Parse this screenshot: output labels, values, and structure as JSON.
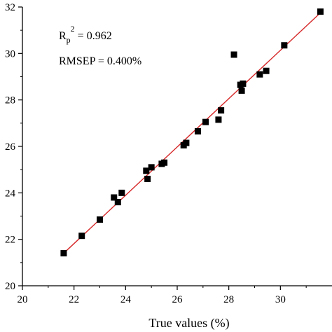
{
  "chart_data": {
    "type": "scatter",
    "xlabel": "True values (%)",
    "ylabel": "",
    "xlim": [
      20,
      32
    ],
    "ylim": [
      20,
      32
    ],
    "xticks": [
      "20",
      "22",
      "24",
      "26",
      "28",
      "30"
    ],
    "yticks": [
      "20",
      "22",
      "24",
      "26",
      "28",
      "30",
      "32"
    ],
    "grid": false,
    "annotations": {
      "r_main": "R",
      "r_sub": "p",
      "r_sup": "2",
      "r_value": " = 0.962",
      "rmsep": "RMSEP = 0.400%"
    },
    "fit_line": {
      "x": [
        21.6,
        31.6
      ],
      "y": [
        21.4,
        31.8
      ],
      "color": "#d62728"
    },
    "marker_color": "#000000",
    "series": [
      {
        "x": [
          21.6,
          22.3,
          23.0,
          23.55,
          23.7,
          23.85,
          24.8,
          24.85,
          25.0,
          25.4,
          25.5,
          26.25,
          26.35,
          26.8,
          27.1,
          27.6,
          27.7,
          28.2,
          28.45,
          28.5,
          28.55,
          29.2,
          29.45,
          30.15,
          31.55
        ],
        "y": [
          21.4,
          22.15,
          22.85,
          23.8,
          23.6,
          24.0,
          24.95,
          24.6,
          25.1,
          25.25,
          25.3,
          26.05,
          26.15,
          26.65,
          27.05,
          27.15,
          27.55,
          29.95,
          28.65,
          28.4,
          28.7,
          29.1,
          29.25,
          30.35,
          31.8
        ]
      }
    ]
  }
}
